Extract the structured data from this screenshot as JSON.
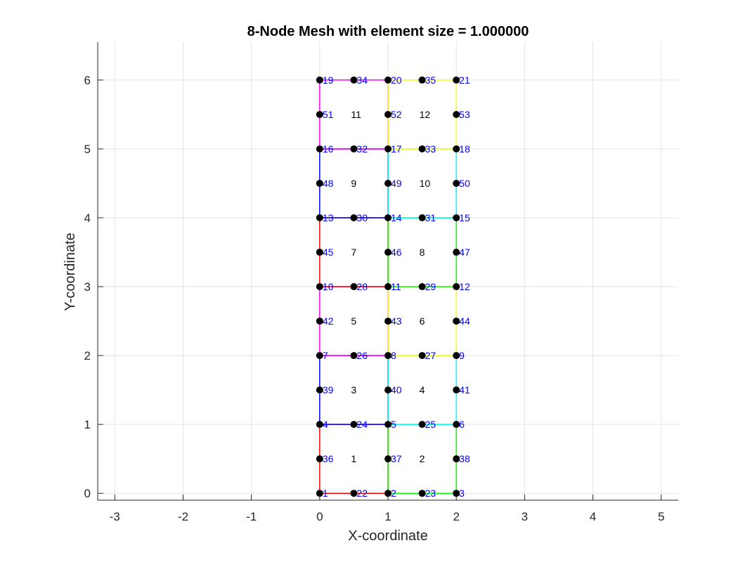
{
  "chart_data": {
    "type": "scatter",
    "title": "8-Node Mesh with element size = 1.000000",
    "xlabel": "X-coordinate",
    "ylabel": "Y-coordinate",
    "xlim": [
      -3.25,
      5.25
    ],
    "ylim": [
      -0.1,
      6.55
    ],
    "xticks": [
      -3,
      -2,
      -1,
      0,
      1,
      2,
      3,
      4,
      5
    ],
    "yticks": [
      0,
      1,
      2,
      3,
      4,
      5,
      6
    ],
    "grid": true,
    "colors": {
      "node": "#000000",
      "node_label": "#0000ff",
      "element_label": "#000000",
      "edges": [
        "#ff0000",
        "#00ff00",
        "#0000ff",
        "#00ffff",
        "#ff00ff",
        "#ffff00"
      ]
    },
    "nodes": [
      {
        "id": "1",
        "x": 0,
        "y": 0
      },
      {
        "id": "2",
        "x": 1,
        "y": 0
      },
      {
        "id": "3",
        "x": 2,
        "y": 0
      },
      {
        "id": "4",
        "x": 0,
        "y": 1
      },
      {
        "id": "5",
        "x": 1,
        "y": 1
      },
      {
        "id": "6",
        "x": 2,
        "y": 1
      },
      {
        "id": "7",
        "x": 0,
        "y": 2
      },
      {
        "id": "8",
        "x": 1,
        "y": 2
      },
      {
        "id": "9",
        "x": 2,
        "y": 2
      },
      {
        "id": "10",
        "x": 0,
        "y": 3
      },
      {
        "id": "11",
        "x": 1,
        "y": 3
      },
      {
        "id": "12",
        "x": 2,
        "y": 3
      },
      {
        "id": "13",
        "x": 0,
        "y": 4
      },
      {
        "id": "14",
        "x": 1,
        "y": 4
      },
      {
        "id": "15",
        "x": 2,
        "y": 4
      },
      {
        "id": "16",
        "x": 0,
        "y": 5
      },
      {
        "id": "17",
        "x": 1,
        "y": 5
      },
      {
        "id": "18",
        "x": 2,
        "y": 5
      },
      {
        "id": "19",
        "x": 0,
        "y": 6
      },
      {
        "id": "20",
        "x": 1,
        "y": 6
      },
      {
        "id": "21",
        "x": 2,
        "y": 6
      },
      {
        "id": "22",
        "x": 0.5,
        "y": 0
      },
      {
        "id": "23",
        "x": 1.5,
        "y": 0
      },
      {
        "id": "24",
        "x": 0.5,
        "y": 1
      },
      {
        "id": "25",
        "x": 1.5,
        "y": 1
      },
      {
        "id": "26",
        "x": 0.5,
        "y": 2
      },
      {
        "id": "27",
        "x": 1.5,
        "y": 2
      },
      {
        "id": "28",
        "x": 0.5,
        "y": 3
      },
      {
        "id": "29",
        "x": 1.5,
        "y": 3
      },
      {
        "id": "30",
        "x": 0.5,
        "y": 4
      },
      {
        "id": "31",
        "x": 1.5,
        "y": 4
      },
      {
        "id": "32",
        "x": 0.5,
        "y": 5
      },
      {
        "id": "33",
        "x": 1.5,
        "y": 5
      },
      {
        "id": "34",
        "x": 0.5,
        "y": 6
      },
      {
        "id": "35",
        "x": 1.5,
        "y": 6
      },
      {
        "id": "36",
        "x": 0,
        "y": 0.5
      },
      {
        "id": "37",
        "x": 1,
        "y": 0.5
      },
      {
        "id": "38",
        "x": 2,
        "y": 0.5
      },
      {
        "id": "39",
        "x": 0,
        "y": 1.5
      },
      {
        "id": "40",
        "x": 1,
        "y": 1.5
      },
      {
        "id": "41",
        "x": 2,
        "y": 1.5
      },
      {
        "id": "42",
        "x": 0,
        "y": 2.5
      },
      {
        "id": "43",
        "x": 1,
        "y": 2.5
      },
      {
        "id": "44",
        "x": 2,
        "y": 2.5
      },
      {
        "id": "45",
        "x": 0,
        "y": 3.5
      },
      {
        "id": "46",
        "x": 1,
        "y": 3.5
      },
      {
        "id": "47",
        "x": 2,
        "y": 3.5
      },
      {
        "id": "48",
        "x": 0,
        "y": 4.5
      },
      {
        "id": "49",
        "x": 1,
        "y": 4.5
      },
      {
        "id": "50",
        "x": 2,
        "y": 4.5
      },
      {
        "id": "51",
        "x": 0,
        "y": 5.5
      },
      {
        "id": "52",
        "x": 1,
        "y": 5.5
      },
      {
        "id": "53",
        "x": 2,
        "y": 5.5
      }
    ],
    "elements": [
      {
        "id": "1",
        "x0": 0,
        "y0": 0,
        "x1": 1,
        "y1": 1,
        "cx": 0.5,
        "cy": 0.5,
        "color": "#ff0000"
      },
      {
        "id": "2",
        "x0": 1,
        "y0": 0,
        "x1": 2,
        "y1": 1,
        "cx": 1.5,
        "cy": 0.5,
        "color": "#00ff00"
      },
      {
        "id": "3",
        "x0": 0,
        "y0": 1,
        "x1": 1,
        "y1": 2,
        "cx": 0.5,
        "cy": 1.5,
        "color": "#0000ff"
      },
      {
        "id": "4",
        "x0": 1,
        "y0": 1,
        "x1": 2,
        "y1": 2,
        "cx": 1.5,
        "cy": 1.5,
        "color": "#00ffff"
      },
      {
        "id": "5",
        "x0": 0,
        "y0": 2,
        "x1": 1,
        "y1": 3,
        "cx": 0.5,
        "cy": 2.5,
        "color": "#ff00ff"
      },
      {
        "id": "6",
        "x0": 1,
        "y0": 2,
        "x1": 2,
        "y1": 3,
        "cx": 1.5,
        "cy": 2.5,
        "color": "#ffff00"
      },
      {
        "id": "7",
        "x0": 0,
        "y0": 3,
        "x1": 1,
        "y1": 4,
        "cx": 0.5,
        "cy": 3.5,
        "color": "#ff0000"
      },
      {
        "id": "8",
        "x0": 1,
        "y0": 3,
        "x1": 2,
        "y1": 4,
        "cx": 1.5,
        "cy": 3.5,
        "color": "#00ff00"
      },
      {
        "id": "9",
        "x0": 0,
        "y0": 4,
        "x1": 1,
        "y1": 5,
        "cx": 0.5,
        "cy": 4.5,
        "color": "#0000ff"
      },
      {
        "id": "10",
        "x0": 1,
        "y0": 4,
        "x1": 2,
        "y1": 5,
        "cx": 1.5,
        "cy": 4.5,
        "color": "#00ffff"
      },
      {
        "id": "11",
        "x0": 0,
        "y0": 5,
        "x1": 1,
        "y1": 6,
        "cx": 0.5,
        "cy": 5.5,
        "color": "#ff00ff"
      },
      {
        "id": "12",
        "x0": 1,
        "y0": 5,
        "x1": 2,
        "y1": 6,
        "cx": 1.5,
        "cy": 5.5,
        "color": "#ffff00"
      }
    ]
  }
}
